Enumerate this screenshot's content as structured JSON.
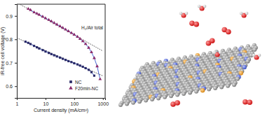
{
  "chart_data": {
    "type": "scatter",
    "annotation": "H₂/Air total",
    "x_label": "Current density (mA/cm²)",
    "y_label": "iR-free cell voltage (V)",
    "log": "x",
    "xlim": [
      1,
      1200
    ],
    "xticks": [
      1,
      10,
      100,
      1000
    ],
    "ylim": [
      0.55,
      0.95
    ],
    "yticks": [
      0.6,
      0.7,
      0.8,
      0.9
    ],
    "legend": "right",
    "series": [
      {
        "name": "NC",
        "color": "#2a2a66",
        "marker": "square",
        "line_style": "solid",
        "x": [
          2,
          2.5,
          3,
          4,
          5,
          6,
          8,
          10,
          13,
          16,
          20,
          25,
          32,
          40,
          50,
          63,
          80,
          100,
          130,
          160,
          200,
          250,
          320,
          400,
          500
        ],
        "values": [
          0.79,
          0.785,
          0.78,
          0.772,
          0.766,
          0.761,
          0.754,
          0.748,
          0.742,
          0.737,
          0.732,
          0.727,
          0.722,
          0.717,
          0.712,
          0.707,
          0.703,
          0.698,
          0.693,
          0.688,
          0.683,
          0.677,
          0.67,
          0.66,
          0.645
        ]
      },
      {
        "name": "F20min-NC",
        "color": "#8a2a6a",
        "marker": "triangle",
        "line_style": "solid",
        "x": [
          2.5,
          3,
          4,
          5,
          6,
          8,
          10,
          13,
          16,
          20,
          25,
          32,
          40,
          50,
          63,
          80,
          100,
          130,
          160,
          200,
          250,
          320,
          400,
          500,
          630,
          800
        ],
        "values": [
          0.93,
          0.925,
          0.915,
          0.91,
          0.905,
          0.897,
          0.89,
          0.883,
          0.877,
          0.87,
          0.863,
          0.856,
          0.849,
          0.842,
          0.835,
          0.827,
          0.82,
          0.811,
          0.802,
          0.792,
          0.78,
          0.764,
          0.745,
          0.72,
          0.685,
          0.63
        ]
      }
    ],
    "reference_lines": [
      {
        "x": [
          1,
          1000
        ],
        "values": [
          0.957,
          0.75
        ],
        "line_style": "dotted",
        "color": "#333333"
      },
      {
        "x": [
          1,
          1000
        ],
        "values": [
          0.806,
          0.644
        ],
        "line_style": "dotted",
        "color": "#333333"
      }
    ]
  }
}
